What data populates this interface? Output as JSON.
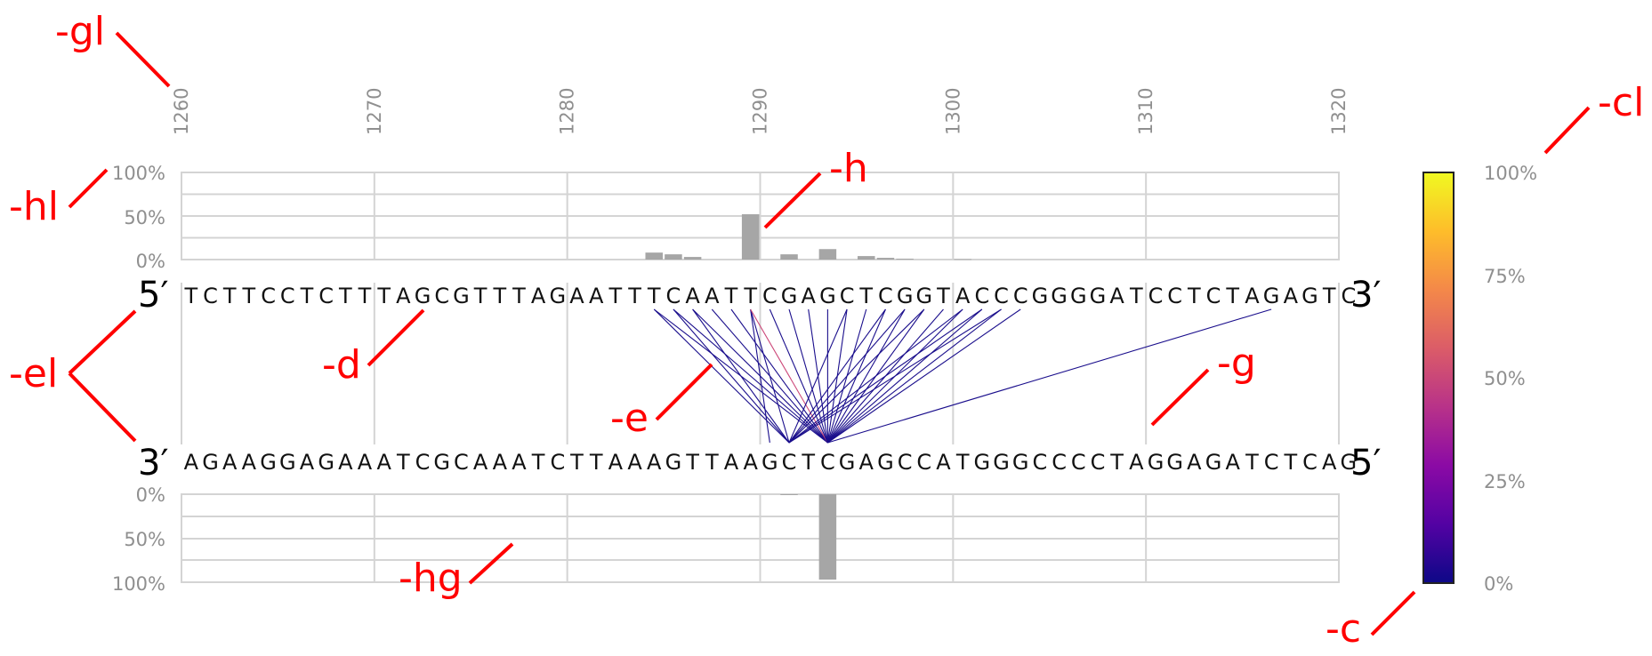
{
  "positions": {
    "start": 1260,
    "end": 1320,
    "ticks": [
      "1260",
      "1270",
      "1280",
      "1290",
      "1300",
      "1310",
      "1320"
    ]
  },
  "percent_labels_top": [
    "100%",
    "50%",
    "0%"
  ],
  "percent_labels_bottom": [
    "0%",
    "50%",
    "100%"
  ],
  "colorbar": {
    "labels": [
      "100%",
      "75%",
      "50%",
      "25%",
      "0%"
    ],
    "colors": [
      "#0d0887",
      "#5302a3",
      "#8b0aa5",
      "#b83289",
      "#db5c68",
      "#f48849",
      "#febd2a",
      "#f0f921"
    ]
  },
  "strand_labels": {
    "top_left": "5′",
    "top_right": "3′",
    "bottom_left": "3′",
    "bottom_right": "5′"
  },
  "sequences": {
    "top": "TCTTCCTCTTTAGCGTTTAGAATTTCAATTCGAGCTCGGTACCCGGGGATCCTCTAGAGTC",
    "bottom": "AGAAGGAGAAATCGCAAATCTTAAAGTTAAGCTCGAGCCATGGGCCCCTAGGAGATCTCAG"
  },
  "histogram_top": [
    {
      "pos": 1284.5,
      "value": 8
    },
    {
      "pos": 1285.5,
      "value": 6
    },
    {
      "pos": 1286.5,
      "value": 3
    },
    {
      "pos": 1289.5,
      "value": 52
    },
    {
      "pos": 1291.5,
      "value": 6
    },
    {
      "pos": 1293.5,
      "value": 12
    },
    {
      "pos": 1295.5,
      "value": 4
    },
    {
      "pos": 1296.5,
      "value": 2
    },
    {
      "pos": 1297.5,
      "value": 1
    },
    {
      "pos": 1300.5,
      "value": 0.5
    }
  ],
  "histogram_bottom": [
    {
      "pos": 1291.5,
      "value": 1
    },
    {
      "pos": 1293.5,
      "value": 97
    }
  ],
  "lines": [
    {
      "from": 1284.5,
      "to": 1293.5,
      "color": "#1a0e8c"
    },
    {
      "from": 1285.5,
      "to": 1293.5,
      "color": "#1a0e8c"
    },
    {
      "from": 1286.5,
      "to": 1293.5,
      "color": "#1a0e8c"
    },
    {
      "from": 1287.5,
      "to": 1293.5,
      "color": "#1a0e8c"
    },
    {
      "from": 1288.5,
      "to": 1293.5,
      "color": "#1a0e8c"
    },
    {
      "from": 1284.5,
      "to": 1291.5,
      "color": "#1a0e8c"
    },
    {
      "from": 1285.5,
      "to": 1291.5,
      "color": "#1a0e8c"
    },
    {
      "from": 1286.5,
      "to": 1291.5,
      "color": "#1a0e8c"
    },
    {
      "from": 1289.5,
      "to": 1290.5,
      "color": "#1a0e8c"
    },
    {
      "from": 1289.5,
      "to": 1291.5,
      "color": "#1a0e8c"
    },
    {
      "from": 1289.5,
      "to": 1293.5,
      "color": "#cc4778"
    },
    {
      "from": 1290.5,
      "to": 1293.5,
      "color": "#1a0e8c"
    },
    {
      "from": 1291.5,
      "to": 1293.5,
      "color": "#1a0e8c"
    },
    {
      "from": 1292.5,
      "to": 1293.5,
      "color": "#1a0e8c"
    },
    {
      "from": 1293.5,
      "to": 1293.5,
      "color": "#1a0e8c"
    },
    {
      "from": 1294.5,
      "to": 1293.5,
      "color": "#1a0e8c"
    },
    {
      "from": 1295.5,
      "to": 1293.5,
      "color": "#1a0e8c"
    },
    {
      "from": 1296.5,
      "to": 1293.5,
      "color": "#1a0e8c"
    },
    {
      "from": 1297.5,
      "to": 1293.5,
      "color": "#1a0e8c"
    },
    {
      "from": 1298.5,
      "to": 1293.5,
      "color": "#1a0e8c"
    },
    {
      "from": 1299.5,
      "to": 1293.5,
      "color": "#1a0e8c"
    },
    {
      "from": 1300.5,
      "to": 1293.5,
      "color": "#1a0e8c"
    },
    {
      "from": 1301.5,
      "to": 1293.5,
      "color": "#1a0e8c"
    },
    {
      "from": 1302.5,
      "to": 1293.5,
      "color": "#1a0e8c"
    },
    {
      "from": 1303.5,
      "to": 1293.5,
      "color": "#1a0e8c"
    },
    {
      "from": 1294.5,
      "to": 1291.5,
      "color": "#1a0e8c"
    },
    {
      "from": 1296.5,
      "to": 1291.5,
      "color": "#1a0e8c"
    },
    {
      "from": 1297.5,
      "to": 1291.5,
      "color": "#1a0e8c"
    },
    {
      "from": 1298.5,
      "to": 1291.5,
      "color": "#1a0e8c"
    },
    {
      "from": 1300.5,
      "to": 1291.5,
      "color": "#1a0e8c"
    },
    {
      "from": 1301.5,
      "to": 1291.5,
      "color": "#1a0e8c"
    },
    {
      "from": 1302.5,
      "to": 1291.5,
      "color": "#1a0e8c"
    },
    {
      "from": 1316.5,
      "to": 1293.5,
      "color": "#1a0e8c"
    }
  ],
  "annotations": [
    "-gl",
    "-hl",
    "-h",
    "-cl",
    "-el",
    "-d",
    "-e",
    "-g",
    "-hg",
    "-c"
  ]
}
